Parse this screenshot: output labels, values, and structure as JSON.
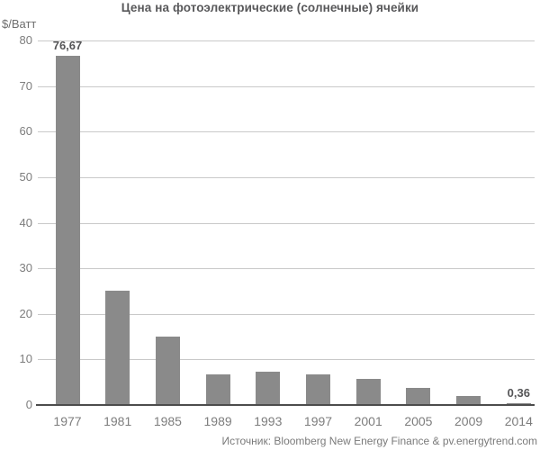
{
  "source": "Источник: Bloomberg New Energy Finance & pv.energytrend.com",
  "chart_data": {
    "type": "bar",
    "title": "Цена на фотоэлектрические (солнечные) ячейки",
    "ylabel": "$/Ватт",
    "xlabel": "",
    "categories": [
      "1977",
      "1981",
      "1985",
      "1989",
      "1993",
      "1997",
      "2001",
      "2005",
      "2009",
      "2014"
    ],
    "values": [
      76.67,
      25,
      15,
      6.7,
      7.3,
      6.7,
      5.8,
      3.8,
      2,
      0.36
    ],
    "bar_labels": [
      "76,67",
      "",
      "",
      "",
      "",
      "",
      "",
      "",
      "",
      "0,36"
    ],
    "ylim": [
      0,
      80
    ],
    "yticks": [
      0,
      10,
      20,
      30,
      40,
      50,
      60,
      70,
      80
    ],
    "grid": true,
    "legend": false,
    "bar_color": "#8a8a8a",
    "gridline_color": "#c9c9c9",
    "axis_color": "#4c4c4c",
    "tick_label_color": "#7d7d7d",
    "value_label_color": "#555557"
  }
}
